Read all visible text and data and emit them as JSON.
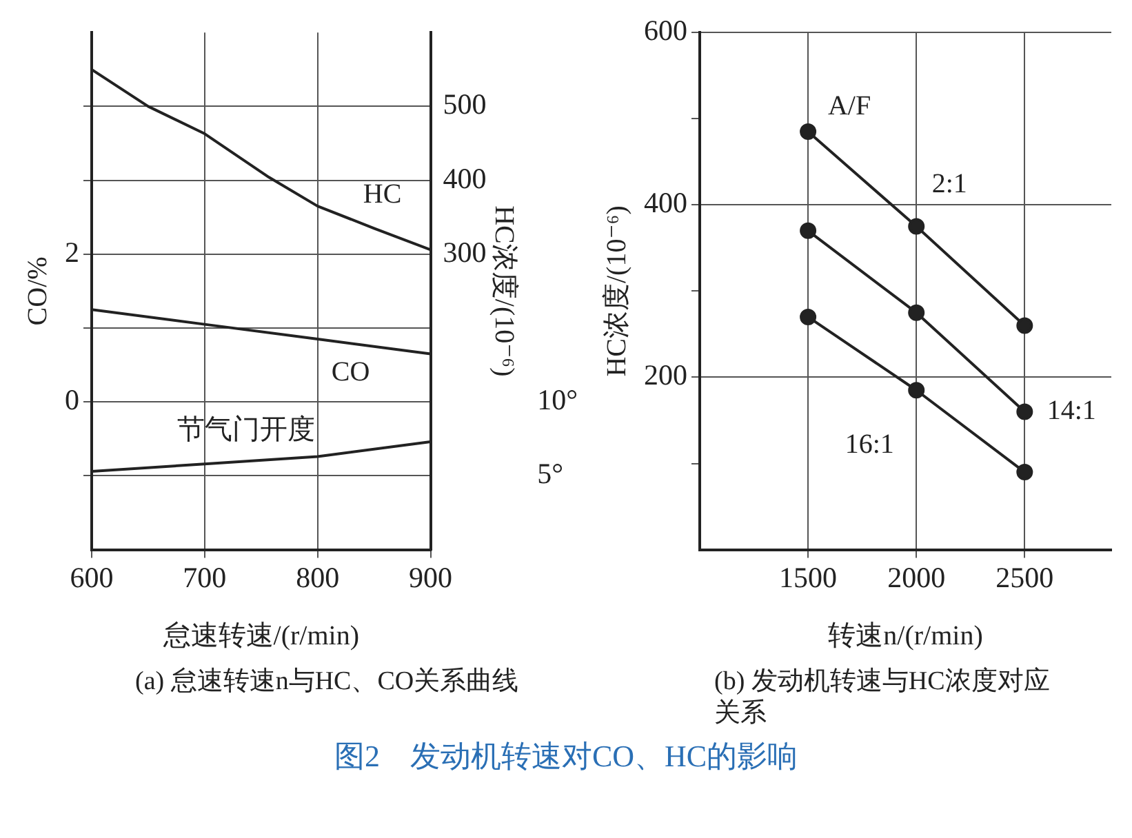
{
  "chart_data": [
    {
      "type": "line",
      "title": "图2　发动机转速对CO、HC的影响",
      "xlabel": "怠速转速/(r/min)",
      "ylabel": "CO/%",
      "y2label": "HC浓度/(10⁻⁶)",
      "annotations": [
        "(a)  怠速转速n与HC、CO关系曲线"
      ],
      "xlim": [
        600,
        900
      ],
      "xticks": [
        600,
        700,
        800,
        900
      ],
      "ylim": [
        -2,
        5
      ],
      "yticks": [
        {
          "value": -1,
          "label": null
        },
        0,
        {
          "value": 1,
          "label": null
        },
        2,
        {
          "value": 3,
          "label": null
        },
        {
          "value": 4,
          "label": null
        }
      ],
      "y2lim": [
        -100,
        600
      ],
      "y2ticks": [
        300,
        400,
        500
      ],
      "y3lim": [
        0,
        35
      ],
      "y3ticks": [
        {
          "value": 5,
          "label": "5°"
        },
        {
          "value": 10,
          "label": "10°"
        }
      ],
      "grid": true,
      "legend": false,
      "marker": "none",
      "series": [
        {
          "name": "HC",
          "color": "#222222",
          "axis": "y2",
          "x": [
            600,
            650,
            700,
            757,
            800,
            850,
            900
          ],
          "values": [
            550,
            500,
            463,
            404,
            365,
            335,
            306
          ]
        },
        {
          "name": "CO",
          "color": "#222222",
          "x": [
            600,
            700,
            800,
            900
          ],
          "values": [
            1.25,
            1.05,
            0.85,
            0.65
          ]
        },
        {
          "name": "节气门开度",
          "color": "#222222",
          "axis": "y3",
          "x": [
            600,
            700,
            800,
            900
          ],
          "values": [
            5.3,
            5.8,
            6.3,
            7.3
          ]
        }
      ]
    },
    {
      "type": "line",
      "xlabel": "转速n/(r/min)",
      "ylabel": "HC浓度/(10⁻⁶)",
      "legend_title": "A/F",
      "annotations": [
        "(b)  发动机转速与HC浓度对应关系"
      ],
      "xlim": [
        1000,
        2900
      ],
      "xticks": [
        1500,
        2000,
        2500
      ],
      "ylim": [
        0,
        600
      ],
      "yticks": [
        {
          "value": 100,
          "label": null
        },
        200,
        {
          "value": 300,
          "label": null
        },
        400,
        {
          "value": 500,
          "label": null
        },
        600
      ],
      "grid": true,
      "legend": false,
      "marker": "circle",
      "series": [
        {
          "name": "2:1",
          "color": "#222222",
          "x": [
            1500,
            2000,
            2500
          ],
          "values": [
            485,
            375,
            260
          ]
        },
        {
          "name": "14:1",
          "color": "#222222",
          "x": [
            1500,
            2000,
            2500
          ],
          "values": [
            370,
            275,
            160
          ]
        },
        {
          "name": "16:1",
          "color": "#222222",
          "x": [
            1500,
            2000,
            2500
          ],
          "values": [
            270,
            185,
            90
          ]
        }
      ]
    }
  ]
}
